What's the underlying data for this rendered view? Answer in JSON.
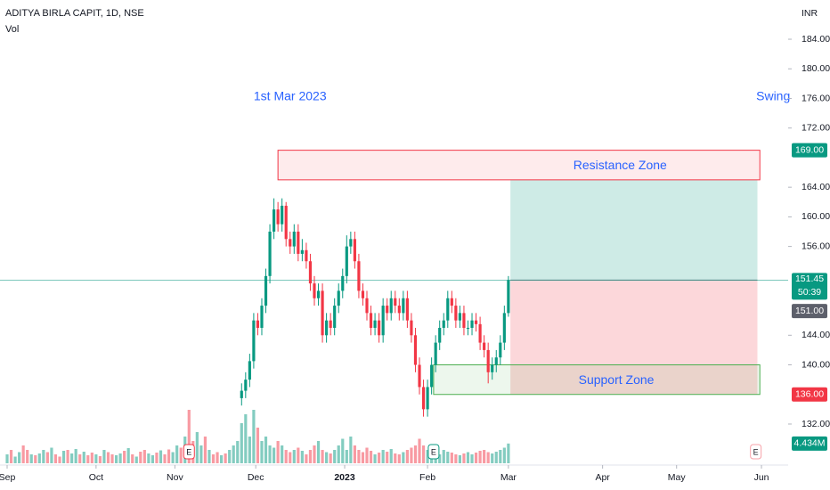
{
  "chart_data": {
    "type": "candlestick",
    "title": "ADITYA BIRLA CAPIT, 1D, NSE",
    "volume_title": "Vol",
    "currency": "INR",
    "annotations": [
      {
        "text": "1st Mar 2023",
        "x": 70,
        "y": 176.2
      },
      {
        "text": "Swing",
        "x": 189.5,
        "y": 176.2
      }
    ],
    "xlim": [
      -1.762,
      193.2
    ],
    "ylim": [
      126.7,
      189.3
    ],
    "y2lim": [
      0,
      104
    ],
    "xticks": [
      {
        "value": 0,
        "label": "Sep"
      },
      {
        "value": 22,
        "label": "Oct"
      },
      {
        "value": 41.5,
        "label": "Nov"
      },
      {
        "value": 61.5,
        "label": "Dec"
      },
      {
        "value": 83.5,
        "label": "2023"
      },
      {
        "value": 104,
        "label": "Feb"
      },
      {
        "value": 124,
        "label": "Mar"
      },
      {
        "value": 147.3,
        "label": "Apr"
      },
      {
        "value": 165.6,
        "label": "May"
      },
      {
        "value": 186.6,
        "label": "Jun"
      }
    ],
    "yticks": [
      {
        "value": 184,
        "label": "184.00"
      },
      {
        "value": 180,
        "label": "180.00"
      },
      {
        "value": 176,
        "label": "176.00"
      },
      {
        "value": 172,
        "label": "172.00"
      },
      {
        "value": 164,
        "label": "164.00"
      },
      {
        "value": 160,
        "label": "160.00"
      },
      {
        "value": 156,
        "label": "156.00"
      },
      {
        "value": 144,
        "label": "144.00"
      },
      {
        "value": 140,
        "label": "140.00"
      },
      {
        "value": 132,
        "label": "132.00"
      }
    ],
    "up_color": "#089981",
    "down_color": "#f23645",
    "open": [
      null,
      null,
      null,
      null,
      null,
      null,
      null,
      null,
      null,
      null,
      null,
      null,
      null,
      null,
      null,
      null,
      null,
      null,
      null,
      null,
      null,
      null,
      null,
      null,
      null,
      null,
      null,
      null,
      null,
      null,
      null,
      null,
      null,
      null,
      null,
      null,
      null,
      null,
      null,
      null,
      null,
      null,
      null,
      null,
      null,
      null,
      null,
      null,
      null,
      null,
      null,
      null,
      null,
      null,
      null,
      null,
      null,
      null,
      135.5,
      136.5,
      138,
      140.5,
      146,
      145,
      148,
      152,
      158,
      161,
      159,
      161.5,
      157,
      156,
      158,
      155,
      155.5,
      154,
      151,
      149,
      150,
      144,
      146,
      145,
      148,
      150,
      152,
      156,
      157,
      154,
      150,
      149,
      147,
      145,
      146,
      144,
      148,
      147,
      149,
      148,
      147,
      149,
      146,
      144,
      140,
      137,
      134,
      137,
      140,
      143,
      145,
      146,
      149,
      148,
      146,
      147,
      145,
      145,
      146,
      145.5,
      143,
      142,
      139,
      140,
      141,
      143,
      147
    ],
    "high": [
      null,
      null,
      null,
      null,
      null,
      null,
      null,
      null,
      null,
      null,
      null,
      null,
      null,
      null,
      null,
      null,
      null,
      null,
      null,
      null,
      null,
      null,
      null,
      null,
      null,
      null,
      null,
      null,
      null,
      null,
      null,
      null,
      null,
      null,
      null,
      null,
      null,
      null,
      null,
      null,
      null,
      null,
      null,
      null,
      null,
      null,
      null,
      null,
      null,
      null,
      null,
      null,
      null,
      null,
      null,
      null,
      null,
      null,
      137.5,
      139,
      141.5,
      147,
      147,
      149,
      153,
      159,
      162.5,
      162,
      162.5,
      162,
      158,
      159,
      159,
      157,
      156.5,
      155,
      152,
      151,
      151,
      147,
      147,
      149,
      151,
      153,
      157.5,
      158,
      158,
      155,
      151,
      150,
      148,
      147,
      147,
      149,
      149,
      150,
      150,
      149,
      150,
      150,
      147,
      145,
      141,
      138,
      138,
      141,
      144,
      146,
      147,
      150,
      150,
      149,
      148,
      148,
      146,
      147,
      147,
      146.5,
      144,
      143,
      141,
      142,
      144,
      148,
      152
    ],
    "low": [
      null,
      null,
      null,
      null,
      null,
      null,
      null,
      null,
      null,
      null,
      null,
      null,
      null,
      null,
      null,
      null,
      null,
      null,
      null,
      null,
      null,
      null,
      null,
      null,
      null,
      null,
      null,
      null,
      null,
      null,
      null,
      null,
      null,
      null,
      null,
      null,
      null,
      null,
      null,
      null,
      null,
      null,
      null,
      null,
      null,
      null,
      null,
      null,
      null,
      null,
      null,
      null,
      null,
      null,
      null,
      null,
      null,
      null,
      134.5,
      135.5,
      137,
      139.5,
      144,
      144,
      147,
      151,
      157,
      158,
      158,
      156,
      155,
      155,
      154,
      154,
      153,
      150,
      148,
      148,
      143,
      143,
      144,
      144,
      147,
      149,
      151,
      155,
      153,
      149,
      148,
      146,
      144,
      144,
      143,
      143,
      146,
      146,
      147,
      146,
      146,
      145,
      143,
      139,
      136,
      133,
      133,
      136,
      139,
      142,
      144,
      145,
      147,
      145,
      145,
      144,
      144,
      144,
      144.5,
      142,
      141,
      137.5,
      138,
      139,
      140,
      142,
      146.5
    ],
    "close": [
      null,
      null,
      null,
      null,
      null,
      null,
      null,
      null,
      null,
      null,
      null,
      null,
      null,
      null,
      null,
      null,
      null,
      null,
      null,
      null,
      null,
      null,
      null,
      null,
      null,
      null,
      null,
      null,
      null,
      null,
      null,
      null,
      null,
      null,
      null,
      null,
      null,
      null,
      null,
      null,
      null,
      null,
      null,
      null,
      null,
      null,
      null,
      null,
      null,
      null,
      null,
      null,
      null,
      null,
      null,
      null,
      null,
      null,
      136.5,
      138,
      140.5,
      146,
      145,
      148,
      152,
      158,
      161,
      159,
      161.5,
      157,
      156,
      158,
      155,
      155.5,
      154,
      151,
      149,
      150,
      144,
      146,
      145,
      148,
      150,
      152,
      156,
      157,
      154,
      150,
      149,
      147,
      145,
      146,
      144,
      148,
      147,
      149,
      148,
      147,
      149,
      146,
      144,
      140,
      137,
      134,
      137,
      140,
      143,
      145,
      146,
      149,
      148,
      146,
      147,
      145,
      145,
      146,
      145.5,
      143,
      142,
      139,
      140,
      141,
      143,
      147,
      151.45
    ],
    "volume": [
      2,
      3,
      1.5,
      2.5,
      4,
      3,
      2,
      1.8,
      2.2,
      3,
      2.5,
      3.5,
      2,
      1.5,
      2.8,
      3,
      2.2,
      3.2,
      2,
      2.6,
      1.8,
      2.4,
      2,
      1.6,
      3,
      2.5,
      2,
      1.8,
      2.2,
      2.8,
      3.4,
      2,
      1.5,
      2.6,
      3,
      2.2,
      1.8,
      2.4,
      2.9,
      2,
      3.1,
      2.5,
      4,
      3.5,
      6,
      12,
      5,
      7,
      4,
      6,
      3,
      2,
      2.5,
      1.8,
      2.2,
      3,
      4,
      5,
      9,
      11,
      6,
      12,
      8,
      5,
      6,
      4,
      3.5,
      5,
      4,
      3,
      2.5,
      3,
      3.5,
      2.8,
      2,
      3,
      4,
      5,
      3,
      2.5,
      2.2,
      3,
      4,
      5.5,
      3,
      6,
      4,
      3,
      2.5,
      3.5,
      2.8,
      2,
      2.4,
      3,
      2.6,
      3.2,
      2.2,
      2,
      2.5,
      3,
      3.5,
      4,
      5.5,
      4,
      3,
      2.5,
      2.2,
      2,
      3,
      2.6,
      2.4,
      2,
      1.8,
      2.2,
      2.5,
      2,
      2.4,
      2.8,
      3,
      2.5,
      2.2,
      2.6,
      3,
      3.5,
      4.434
    ],
    "volume_up": [
      1,
      0,
      1,
      1,
      0,
      0,
      1,
      0,
      1,
      1,
      0,
      1,
      0,
      0,
      1,
      0,
      1,
      1,
      0,
      1,
      0,
      0,
      1,
      0,
      1,
      0,
      0,
      1,
      1,
      0,
      1,
      0,
      1,
      0,
      0,
      1,
      1,
      0,
      1,
      0,
      0,
      1,
      1,
      0,
      1,
      0,
      0,
      1,
      1,
      0,
      1,
      0,
      0,
      1,
      0,
      1,
      1,
      1,
      1,
      1,
      1,
      1,
      0,
      1,
      1,
      1,
      1,
      0,
      1,
      0,
      0,
      1,
      0,
      1,
      0,
      0,
      0,
      1,
      0,
      1,
      0,
      1,
      1,
      1,
      1,
      1,
      0,
      0,
      0,
      0,
      0,
      1,
      0,
      1,
      0,
      1,
      0,
      0,
      1,
      0,
      0,
      0,
      0,
      0,
      1,
      1,
      1,
      1,
      1,
      1,
      0,
      0,
      1,
      0,
      1,
      1,
      0,
      0,
      0,
      0,
      1,
      1,
      1,
      1,
      1
    ],
    "volume_label": "4.434M",
    "last_price_line": 151.45,
    "zones": [
      {
        "name": "Resistance Zone",
        "low": 165,
        "high": 169,
        "x": [
          67,
          186.2
        ],
        "color": "#f23645"
      },
      {
        "name": "Support Zone",
        "low": 136,
        "high": 140,
        "x": [
          105.5,
          186.2
        ],
        "color": "#4caf50"
      }
    ],
    "position": {
      "entry": 151.45,
      "target": 165,
      "stop": 136,
      "x": [
        124.5,
        185.6
      ]
    },
    "price_labels": [
      {
        "value": 169,
        "label": "169.00",
        "color": "#089981"
      },
      {
        "value": 151.45,
        "label": "151.45",
        "countdown": "50:39",
        "color": "#089981"
      },
      {
        "value": 151,
        "label": "151.00",
        "color": "#5d606b"
      },
      {
        "value": 136,
        "label": "136.00",
        "color": "#f23645"
      }
    ],
    "earnings": [
      {
        "label": "E",
        "x": 45,
        "color": "#f23645"
      },
      {
        "label": "E",
        "x": 105.5,
        "color": "#089981"
      },
      {
        "label": "E",
        "x": 185.2,
        "color": "#f7a1a8"
      }
    ]
  }
}
